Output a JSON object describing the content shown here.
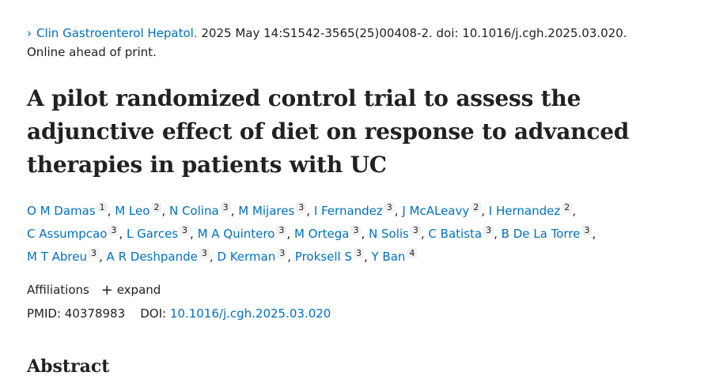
{
  "citation": {
    "chevron": "›",
    "journal": "Clin Gastroenterol Hepatol.",
    "details": " 2025 May 14:S1542-3565(25)00408-2. doi: 10.1016/j.cgh.2025.03.020.",
    "status": "Online ahead of print."
  },
  "title": "A pilot randomized control trial to assess the adjunctive effect of diet on response to advanced therapies in patients with UC",
  "authors": [
    {
      "name": "O M Damas",
      "aff": "1"
    },
    {
      "name": "M Leo",
      "aff": "2"
    },
    {
      "name": "N Colina",
      "aff": "3"
    },
    {
      "name": "M Mijares",
      "aff": "3"
    },
    {
      "name": "I Fernandez",
      "aff": "3"
    },
    {
      "name": "J McALeavy",
      "aff": "2"
    },
    {
      "name": "I Hernandez",
      "aff": "2"
    },
    {
      "name": "C Assumpcao",
      "aff": "3"
    },
    {
      "name": "L Garces",
      "aff": "3"
    },
    {
      "name": "M A Quintero",
      "aff": "3"
    },
    {
      "name": "M Ortega",
      "aff": "3"
    },
    {
      "name": "N Solis",
      "aff": "3"
    },
    {
      "name": "C Batista",
      "aff": "3"
    },
    {
      "name": "B De La Torre",
      "aff": "3"
    },
    {
      "name": "M T Abreu",
      "aff": "3"
    },
    {
      "name": "A R Deshpande",
      "aff": "3"
    },
    {
      "name": "D Kerman",
      "aff": "3"
    },
    {
      "name": "Proksell S",
      "aff": "3"
    },
    {
      "name": "Y Ban",
      "aff": "4"
    }
  ],
  "affiliations": {
    "label": "Affiliations",
    "plus": "+",
    "expand_label": "expand"
  },
  "ids": {
    "pmid_label": "PMID:",
    "pmid": "40378983",
    "doi_label": "DOI:",
    "doi": "10.1016/j.cgh.2025.03.020"
  },
  "abstract_heading": "Abstract",
  "colors": {
    "link": "#0071bc",
    "text": "#212121"
  }
}
